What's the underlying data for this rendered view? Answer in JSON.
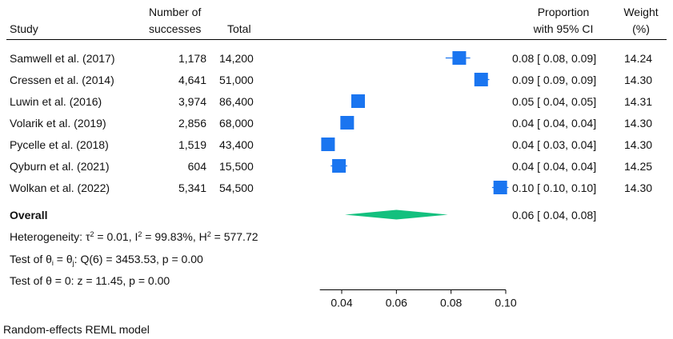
{
  "headers": {
    "study": "Study",
    "successes_line1": "Number of",
    "successes_line2": "successes",
    "total": "Total",
    "proportion_line1": "Proportion",
    "proportion_line2": "with 95% CI",
    "weight_line1": "Weight",
    "weight_line2": "(%)"
  },
  "overall": {
    "label": "Overall",
    "ci_text": "0.06 [ 0.04, 0.08]"
  },
  "stats": {
    "het_prefix": "Heterogeneity: τ",
    "het_tau_exp": "2",
    "het_mid1": " = 0.01, I",
    "het_i_exp": "2",
    "het_mid2": " = 99.83%, H",
    "het_h_exp": "2",
    "het_end": " = 577.72",
    "test1_prefix": "Test of θ",
    "test1_sub_i": "i",
    "test1_mid": " = θ",
    "test1_sub_j": "j",
    "test1_end": ": Q(6) = 3453.53, p = 0.00",
    "test2": "Test of θ = 0: z = 11.45, p = 0.00"
  },
  "footer": "Random-effects REML model",
  "colors": {
    "marker": "#1a75f0",
    "diamond": "#13c07e",
    "ci_line": "#1a75f0"
  },
  "chart_data": {
    "type": "forest",
    "xlim": [
      0.032,
      0.1
    ],
    "xticks": [
      0.04,
      0.06,
      0.08,
      0.1
    ],
    "xtick_labels": [
      "0.04",
      "0.06",
      "0.08",
      "0.10"
    ],
    "studies": [
      {
        "name": "Samwell et al. (2017)",
        "successes": "1,178",
        "total": "14,200",
        "estimate": 0.083,
        "ci_low": 0.078,
        "ci_high": 0.087,
        "ci_text": "0.08 [ 0.08, 0.09]",
        "weight": "14.24"
      },
      {
        "name": "Cressen et al. (2014)",
        "successes": "4,641",
        "total": "51,000",
        "estimate": 0.091,
        "ci_low": 0.089,
        "ci_high": 0.094,
        "ci_text": "0.09 [ 0.09, 0.09]",
        "weight": "14.30"
      },
      {
        "name": "Luwin et al. (2016)",
        "successes": "3,974",
        "total": "86,400",
        "estimate": 0.046,
        "ci_low": 0.045,
        "ci_high": 0.047,
        "ci_text": "0.05 [ 0.04, 0.05]",
        "weight": "14.31"
      },
      {
        "name": "Volarik et al. (2019)",
        "successes": "2,856",
        "total": "68,000",
        "estimate": 0.042,
        "ci_low": 0.04,
        "ci_high": 0.044,
        "ci_text": "0.04 [ 0.04, 0.04]",
        "weight": "14.30"
      },
      {
        "name": "Pycelle et al. (2018)",
        "successes": "1,519",
        "total": "43,400",
        "estimate": 0.035,
        "ci_low": 0.033,
        "ci_high": 0.037,
        "ci_text": "0.04 [ 0.03, 0.04]",
        "weight": "14.30"
      },
      {
        "name": "Qyburn et al. (2021)",
        "successes": "604",
        "total": "15,500",
        "estimate": 0.039,
        "ci_low": 0.036,
        "ci_high": 0.042,
        "ci_text": "0.04 [ 0.04, 0.04]",
        "weight": "14.25"
      },
      {
        "name": "Wolkan et al. (2022)",
        "successes": "5,341",
        "total": "54,500",
        "estimate": 0.098,
        "ci_low": 0.095,
        "ci_high": 0.101,
        "ci_text": "0.10 [ 0.10, 0.10]",
        "weight": "14.30"
      }
    ],
    "overall": {
      "estimate": 0.06,
      "ci_low": 0.04,
      "ci_high": 0.08
    }
  }
}
